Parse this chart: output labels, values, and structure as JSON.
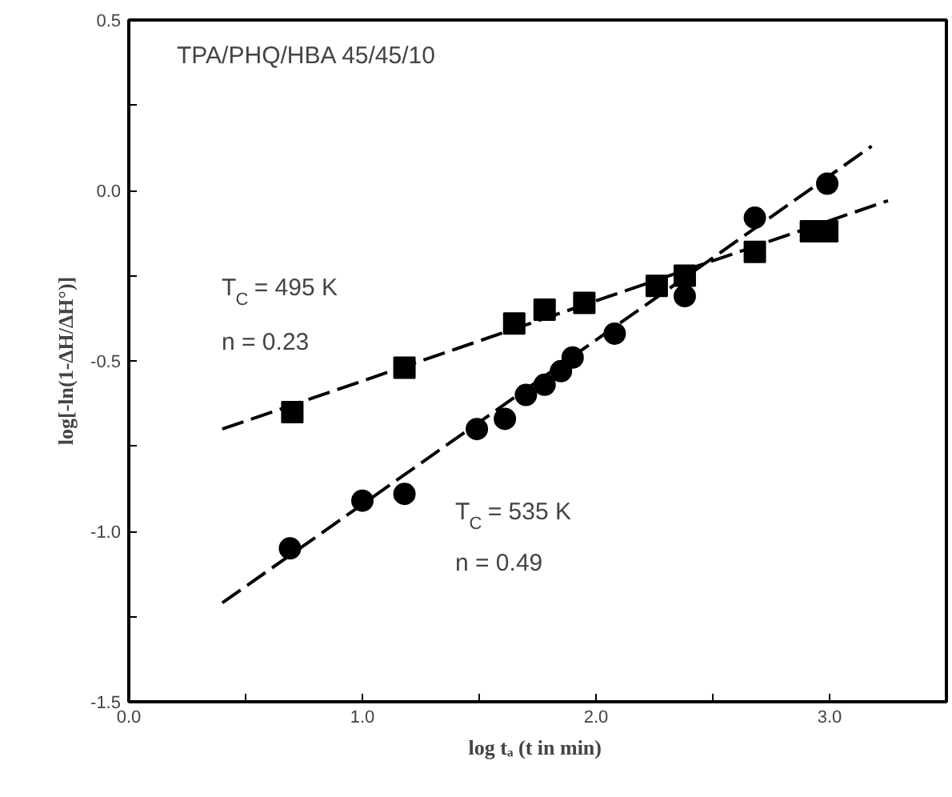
{
  "chart_data": {
    "type": "scatter",
    "title": "TPA/PHQ/HBA   45/45/10",
    "xlabel": "log tₐ  (t in min)",
    "ylabel": "log[-ln(1-ΔH/ΔH°)]",
    "xlim": [
      0.0,
      3.5
    ],
    "ylim": [
      -1.5,
      0.5
    ],
    "xticks": [
      {
        "value": 0.0,
        "label": "0.0"
      },
      {
        "value": 0.5,
        "label": null
      },
      {
        "value": 1.0,
        "label": "1.0"
      },
      {
        "value": 1.5,
        "label": null
      },
      {
        "value": 2.0,
        "label": "2.0"
      },
      {
        "value": 2.5,
        "label": null
      },
      {
        "value": 3.0,
        "label": "3.0"
      }
    ],
    "yticks": [
      {
        "value": -1.5,
        "label": "-1.5"
      },
      {
        "value": -1.25,
        "label": null
      },
      {
        "value": -1.0,
        "label": "-1.0"
      },
      {
        "value": -0.75,
        "label": null
      },
      {
        "value": -0.5,
        "label": "-0.5"
      },
      {
        "value": -0.25,
        "label": null
      },
      {
        "value": 0.0,
        "label": "0.0"
      },
      {
        "value": 0.25,
        "label": null
      },
      {
        "value": 0.5,
        "label": "0.5"
      }
    ],
    "grid": false,
    "series": [
      {
        "marker": "square",
        "color": "#000000",
        "x": [
          0.7,
          1.18,
          1.65,
          1.78,
          1.95,
          2.26,
          2.38,
          2.68,
          2.92,
          2.99
        ],
        "values": [
          -0.65,
          -0.52,
          -0.39,
          -0.35,
          -0.33,
          -0.28,
          -0.25,
          -0.18,
          -0.12,
          -0.12
        ]
      },
      {
        "marker": "circle",
        "color": "#000000",
        "x": [
          0.69,
          1.0,
          1.18,
          1.49,
          1.61,
          1.7,
          1.78,
          1.85,
          1.9,
          2.08,
          2.38,
          2.68,
          2.99
        ],
        "values": [
          -1.05,
          -0.91,
          -0.89,
          -0.7,
          -0.67,
          -0.6,
          -0.57,
          -0.53,
          -0.49,
          -0.42,
          -0.31,
          -0.08,
          0.02
        ]
      },
      {
        "type": "line",
        "line_style": "dashed",
        "marker": "none",
        "color": "#000000",
        "x": [
          0.4,
          3.25
        ],
        "values": [
          -0.7,
          -0.03
        ]
      },
      {
        "type": "line",
        "line_style": "dashed",
        "marker": "none",
        "color": "#000000",
        "x": [
          0.4,
          3.18
        ],
        "values": [
          -1.21,
          0.13
        ]
      }
    ],
    "annotations": [
      "T$_{C}$ = 495 K",
      "n = 0.23",
      "T$_{C}$ = 535 K",
      "n = 0.49"
    ]
  }
}
